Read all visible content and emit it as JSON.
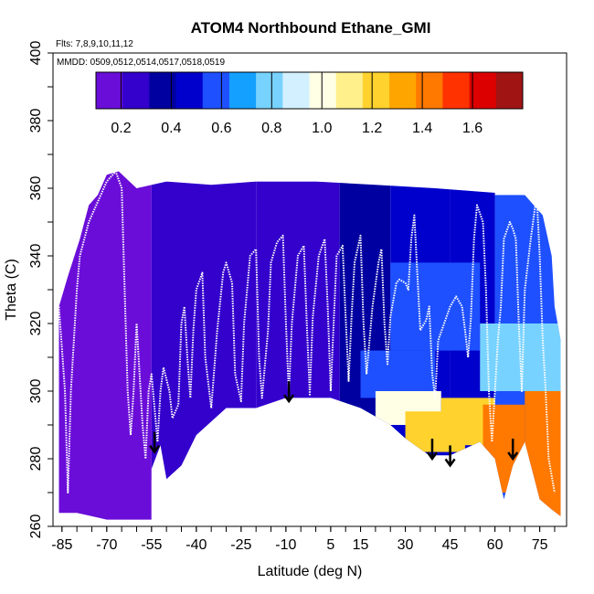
{
  "chart_data": {
    "type": "heatmap",
    "title": "ATOM4 Northbound Ethane_GMI",
    "flights_note": "Flts: 7,8,9,10,11,12",
    "dates_note": "MMDD: 0509,0512,0514,0517,0518,0519",
    "xlabel": "Latitude (deg N)",
    "ylabel": "Theta (C)",
    "xlim": [
      -88,
      84
    ],
    "ylim": [
      260,
      400
    ],
    "x_ticks": [
      -85,
      -70,
      -55,
      -40,
      -25,
      -10,
      5,
      15,
      30,
      45,
      60,
      75
    ],
    "x_tick_labels": [
      "-85",
      "-70",
      "-55",
      "-40",
      "-25",
      "-10",
      "5",
      "15",
      "30",
      "45",
      "60",
      "75"
    ],
    "y_ticks": [
      260,
      280,
      300,
      320,
      340,
      360,
      380,
      400
    ],
    "y_tick_labels": [
      "260",
      "280",
      "300",
      "320",
      "340",
      "360",
      "380",
      "400"
    ],
    "colorbar": {
      "min": 0.1,
      "max": 1.8,
      "ticks": [
        0.2,
        0.4,
        0.6,
        0.8,
        1.0,
        1.2,
        1.4,
        1.6
      ],
      "tick_labels": [
        "0.2",
        "0.4",
        "0.6",
        "0.8",
        "1.0",
        "1.2",
        "1.4",
        "1.6"
      ],
      "colors": [
        "#6A0DD8",
        "#3300CC",
        "#0000A0",
        "#0000CC",
        "#1E50FF",
        "#14A0FF",
        "#78D2FF",
        "#D2F0FF",
        "#FFFFE6",
        "#FFF08C",
        "#FFD22D",
        "#FFA500",
        "#FF7800",
        "#FF3200",
        "#DC0000",
        "#A01414"
      ]
    },
    "coverage": {
      "top": [
        [
          -86,
          325
        ],
        [
          -83,
          334
        ],
        [
          -79,
          345
        ],
        [
          -76,
          355
        ],
        [
          -73,
          358
        ],
        [
          -70,
          364
        ],
        [
          -66,
          365
        ],
        [
          -60,
          360
        ],
        [
          -50,
          362
        ],
        [
          -35,
          361
        ],
        [
          -20,
          362
        ],
        [
          0,
          362
        ],
        [
          20,
          361
        ],
        [
          40,
          360
        ],
        [
          55,
          359
        ],
        [
          70,
          358
        ],
        [
          76,
          352
        ],
        [
          79,
          340
        ],
        [
          80,
          325
        ],
        [
          82,
          315
        ]
      ],
      "bottom": [
        [
          -86,
          264
        ],
        [
          -80,
          264
        ],
        [
          -75,
          263
        ],
        [
          -70,
          262
        ],
        [
          -55,
          262
        ],
        [
          -55,
          277
        ],
        [
          -52,
          284
        ],
        [
          -50,
          274
        ],
        [
          -45,
          278
        ],
        [
          -40,
          287
        ],
        [
          -30,
          295
        ],
        [
          -20,
          295
        ],
        [
          -10,
          298
        ],
        [
          5,
          298
        ],
        [
          15,
          295
        ],
        [
          25,
          290
        ],
        [
          30,
          286
        ],
        [
          38,
          281
        ],
        [
          45,
          281
        ],
        [
          50,
          283
        ],
        [
          55,
          285
        ],
        [
          60,
          280
        ],
        [
          63,
          268
        ],
        [
          66,
          278
        ],
        [
          70,
          285
        ],
        [
          75,
          268
        ],
        [
          79,
          265
        ],
        [
          82,
          263
        ]
      ]
    },
    "field_regions": [
      {
        "lat": [
          -88,
          -55
        ],
        "theta": [
          260,
          366
        ],
        "value": 0.15
      },
      {
        "lat": [
          -55,
          -20
        ],
        "theta": [
          274,
          362
        ],
        "value": 0.22
      },
      {
        "lat": [
          -20,
          8
        ],
        "theta": [
          295,
          362
        ],
        "value": 0.3
      },
      {
        "lat": [
          8,
          25
        ],
        "theta": [
          290,
          362
        ],
        "value": 0.38
      },
      {
        "lat": [
          25,
          45
        ],
        "theta": [
          280,
          362
        ],
        "value": 0.42
      },
      {
        "lat": [
          45,
          60
        ],
        "theta": [
          280,
          360
        ],
        "value": 0.48
      },
      {
        "lat": [
          60,
          84
        ],
        "theta": [
          262,
          358
        ],
        "value": 0.55
      },
      {
        "lat": [
          15,
          40
        ],
        "theta": [
          298,
          312
        ],
        "value": 0.6
      },
      {
        "lat": [
          25,
          55
        ],
        "theta": [
          312,
          338
        ],
        "value": 0.62
      },
      {
        "lat": [
          55,
          82
        ],
        "theta": [
          300,
          320
        ],
        "value": 0.75
      },
      {
        "lat": [
          20,
          42
        ],
        "theta": [
          290,
          300
        ],
        "value": 0.95
      },
      {
        "lat": [
          30,
          50
        ],
        "theta": [
          282,
          294
        ],
        "value": 1.2
      },
      {
        "lat": [
          42,
          60
        ],
        "theta": [
          284,
          298
        ],
        "value": 1.25
      },
      {
        "lat": [
          56,
          70
        ],
        "theta": [
          270,
          296
        ],
        "value": 1.4
      },
      {
        "lat": [
          70,
          82
        ],
        "theta": [
          263,
          300
        ],
        "value": 1.45
      }
    ],
    "flight_track": [
      [
        -86,
        325
      ],
      [
        -84,
        300
      ],
      [
        -83,
        270
      ],
      [
        -82,
        300
      ],
      [
        -80,
        330
      ],
      [
        -79,
        340
      ],
      [
        -76,
        350
      ],
      [
        -73,
        356
      ],
      [
        -70,
        362
      ],
      [
        -67,
        365
      ],
      [
        -65,
        360
      ],
      [
        -64,
        330
      ],
      [
        -63,
        300
      ],
      [
        -62,
        287
      ],
      [
        -61,
        300
      ],
      [
        -60,
        320
      ],
      [
        -58,
        290
      ],
      [
        -57,
        280
      ],
      [
        -56,
        300
      ],
      [
        -55,
        305
      ],
      [
        -54,
        295
      ],
      [
        -53,
        285
      ],
      [
        -52,
        300
      ],
      [
        -51,
        307
      ],
      [
        -49,
        300
      ],
      [
        -48,
        292
      ],
      [
        -46,
        296
      ],
      [
        -45,
        320
      ],
      [
        -44,
        325
      ],
      [
        -43,
        310
      ],
      [
        -42,
        298
      ],
      [
        -41,
        318
      ],
      [
        -40,
        330
      ],
      [
        -38,
        335
      ],
      [
        -37,
        310
      ],
      [
        -35,
        295
      ],
      [
        -33,
        318
      ],
      [
        -31,
        335
      ],
      [
        -30,
        338
      ],
      [
        -28,
        332
      ],
      [
        -27,
        305
      ],
      [
        -25,
        297
      ],
      [
        -24,
        320
      ],
      [
        -22,
        340
      ],
      [
        -20,
        342
      ],
      [
        -19,
        310
      ],
      [
        -18,
        298
      ],
      [
        -16,
        318
      ],
      [
        -15,
        338
      ],
      [
        -13,
        344
      ],
      [
        -11,
        346
      ],
      [
        -10,
        320
      ],
      [
        -9,
        299
      ],
      [
        -8,
        320
      ],
      [
        -6,
        340
      ],
      [
        -4,
        343
      ],
      [
        -3,
        320
      ],
      [
        -2,
        299
      ],
      [
        -1,
        322
      ],
      [
        1,
        340
      ],
      [
        3,
        345
      ],
      [
        4,
        325
      ],
      [
        5,
        300
      ],
      [
        6,
        320
      ],
      [
        7,
        340
      ],
      [
        9,
        343
      ],
      [
        10,
        322
      ],
      [
        11,
        303
      ],
      [
        12,
        322
      ],
      [
        13,
        338
      ],
      [
        15,
        346
      ],
      [
        16,
        320
      ],
      [
        17,
        305
      ],
      [
        19,
        325
      ],
      [
        21,
        338
      ],
      [
        22,
        342
      ],
      [
        23,
        320
      ],
      [
        24,
        308
      ],
      [
        25,
        322
      ],
      [
        27,
        332
      ],
      [
        28,
        333
      ],
      [
        30,
        332
      ],
      [
        31,
        330
      ],
      [
        32,
        345
      ],
      [
        33,
        352
      ],
      [
        34,
        335
      ],
      [
        35,
        318
      ],
      [
        37,
        321
      ],
      [
        38,
        325
      ],
      [
        39,
        305
      ],
      [
        40,
        298
      ],
      [
        41,
        315
      ],
      [
        43,
        320
      ],
      [
        45,
        325
      ],
      [
        47,
        328
      ],
      [
        49,
        325
      ],
      [
        50,
        318
      ],
      [
        51,
        310
      ],
      [
        52,
        322
      ],
      [
        53,
        345
      ],
      [
        54,
        355
      ],
      [
        56,
        350
      ],
      [
        57,
        330
      ],
      [
        58,
        300
      ],
      [
        59,
        285
      ],
      [
        60,
        300
      ],
      [
        61,
        315
      ],
      [
        62,
        325
      ],
      [
        63,
        345
      ],
      [
        65,
        350
      ],
      [
        66,
        348
      ],
      [
        67,
        345
      ],
      [
        68,
        320
      ],
      [
        69,
        300
      ],
      [
        70,
        330
      ],
      [
        72,
        345
      ],
      [
        74,
        358
      ],
      [
        75,
        340
      ],
      [
        76,
        315
      ],
      [
        77,
        300
      ],
      [
        78,
        280
      ],
      [
        80,
        270
      ]
    ],
    "arrows": [
      {
        "lat": -54,
        "theta": 282
      },
      {
        "lat": -9,
        "theta": 297
      },
      {
        "lat": 39,
        "theta": 280
      },
      {
        "lat": 45,
        "theta": 278
      },
      {
        "lat": 66,
        "theta": 280
      }
    ]
  }
}
